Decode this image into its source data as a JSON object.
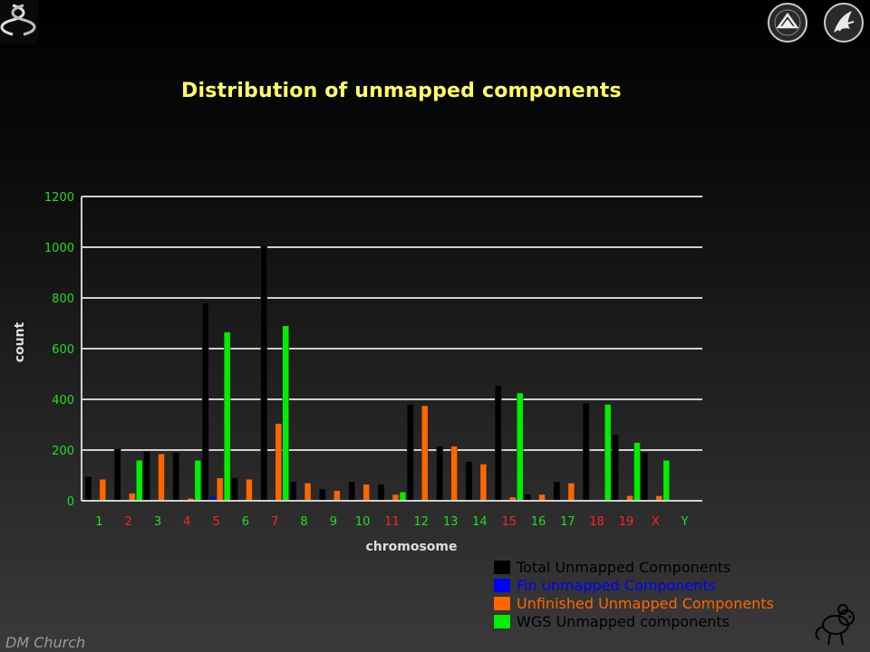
{
  "header": {
    "logo_left": "dna-helix-logo",
    "logo_right_1": "nih-seal-logo",
    "logo_right_2": "hhs-eagle-logo"
  },
  "chart_data": {
    "type": "bar",
    "title": "Distribution of unmapped components",
    "xlabel": "chromosome",
    "ylabel": "count",
    "ylim": [
      0,
      1200
    ],
    "yticks": [
      0,
      200,
      400,
      600,
      800,
      1000,
      1200
    ],
    "grid": true,
    "legend_position": "bottom-right",
    "categories": [
      "1",
      "2",
      "3",
      "4",
      "5",
      "6",
      "7",
      "8",
      "9",
      "10",
      "11",
      "12",
      "13",
      "14",
      "15",
      "16",
      "17",
      "18",
      "19",
      "X",
      "Y"
    ],
    "category_colors": [
      "#22dd22",
      "#ff2222",
      "#22dd22",
      "#ff2222",
      "#ff2222",
      "#22dd22",
      "#ff2222",
      "#22dd22",
      "#22dd22",
      "#22dd22",
      "#ff2222",
      "#22dd22",
      "#22dd22",
      "#22dd22",
      "#ff2222",
      "#22dd22",
      "#22dd22",
      "#ff2222",
      "#ff2222",
      "#ff2222",
      "#22dd22"
    ],
    "series": [
      {
        "name": "Total Unmapped Components",
        "color": "#000000",
        "values": [
          95,
          205,
          195,
          190,
          780,
          90,
          1005,
          75,
          45,
          75,
          65,
          380,
          215,
          155,
          455,
          25,
          75,
          385,
          260,
          190,
          0
        ]
      },
      {
        "name": "Fin unmapped Components",
        "color": "#0000ff",
        "values": [
          0,
          0,
          0,
          0,
          15,
          0,
          0,
          0,
          0,
          0,
          0,
          0,
          0,
          5,
          0,
          0,
          0,
          0,
          0,
          0,
          0
        ]
      },
      {
        "name": "Unfinished Unmapped Components",
        "color": "#ff6600",
        "values": [
          85,
          30,
          185,
          10,
          90,
          85,
          305,
          70,
          40,
          65,
          25,
          375,
          215,
          145,
          15,
          25,
          70,
          0,
          20,
          20,
          0
        ]
      },
      {
        "name": "WGS Unmapped components",
        "color": "#00ee00",
        "values": [
          0,
          160,
          0,
          160,
          665,
          0,
          690,
          0,
          0,
          0,
          35,
          0,
          0,
          5,
          425,
          0,
          0,
          380,
          230,
          160,
          0
        ]
      }
    ],
    "legend_text_colors": [
      "#000000",
      "#0000ff",
      "#ff6600",
      "#000000"
    ],
    "axis_text_color": "#22dd22"
  },
  "footer": {
    "credit": "DM Church",
    "mascot": "mouse-cartoon-icon"
  }
}
